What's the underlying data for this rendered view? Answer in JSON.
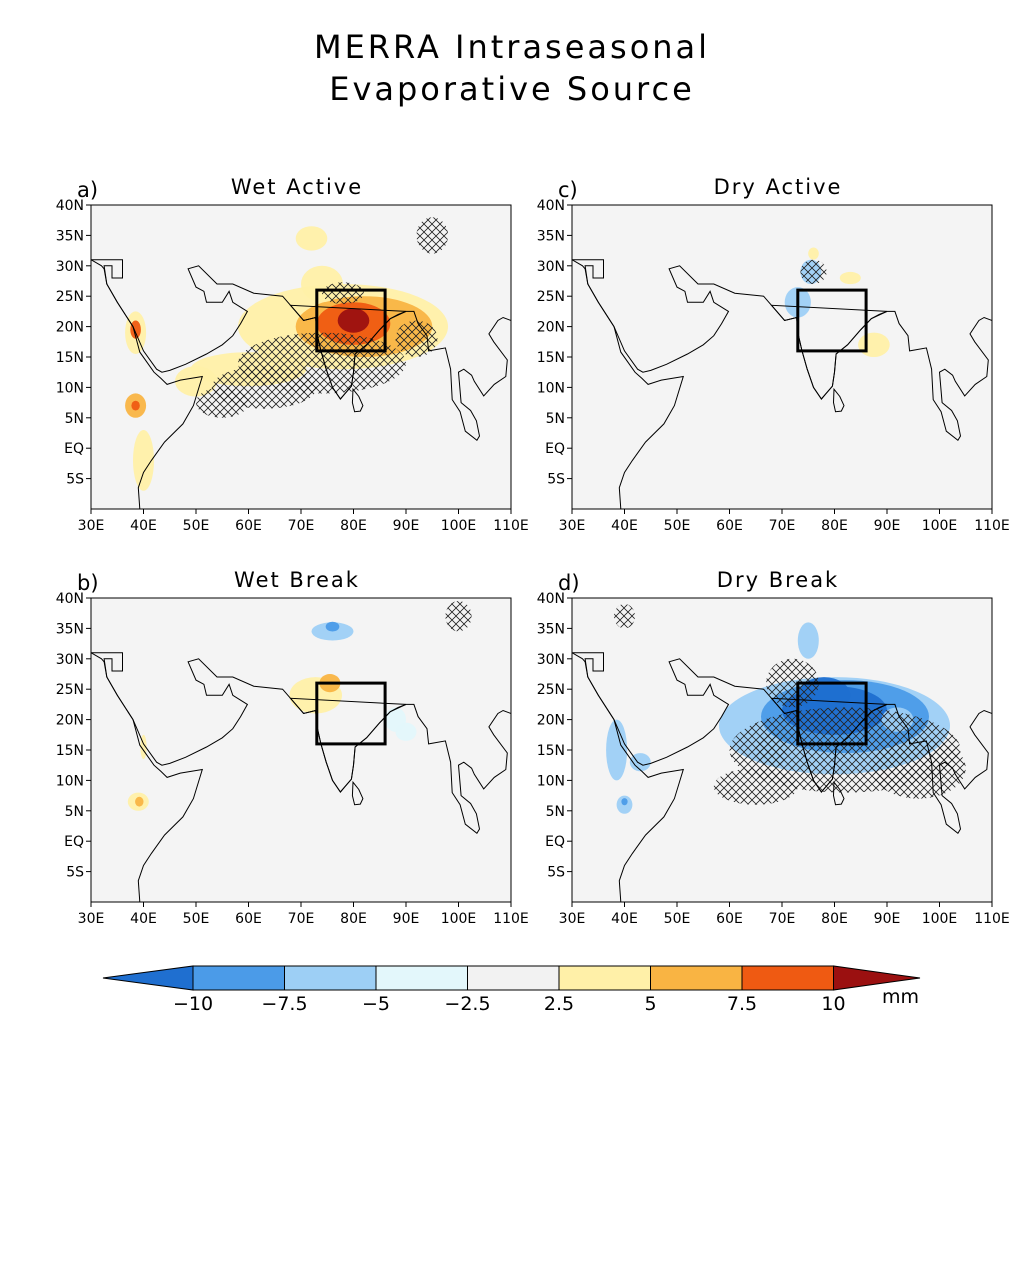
{
  "title": [
    "MERRA Intraseasonal",
    "Evaporative Source"
  ],
  "panels": [
    {
      "id": "a",
      "letter": "a)",
      "name": "Wet Active"
    },
    {
      "id": "c",
      "letter": "c)",
      "name": "Dry Active"
    },
    {
      "id": "b",
      "letter": "b)",
      "name": "Wet Break"
    },
    {
      "id": "d",
      "letter": "d)",
      "name": "Dry Break"
    }
  ],
  "lat_labels": [
    "40N",
    "35N",
    "30N",
    "25N",
    "20N",
    "15N",
    "10N",
    "5N",
    "EQ",
    "5S"
  ],
  "lon_labels": [
    "30E",
    "40E",
    "50E",
    "60E",
    "70E",
    "80E",
    "90E",
    "100E",
    "110E"
  ],
  "colorbar": {
    "ticks": [
      "−10",
      "−7.5",
      "−5",
      "−2.5",
      "2.5",
      "5",
      "7.5",
      "10"
    ],
    "unit": "mm",
    "colors": [
      "#1f6fd0",
      "#4b9be8",
      "#9dcff5",
      "#e3f7fb",
      "#f2f2f2",
      "#fff0a8",
      "#f9b443",
      "#ef5a12",
      "#9b1010"
    ]
  },
  "box_region": {
    "lon": [
      73,
      86
    ],
    "lat": [
      16,
      26
    ]
  }
}
